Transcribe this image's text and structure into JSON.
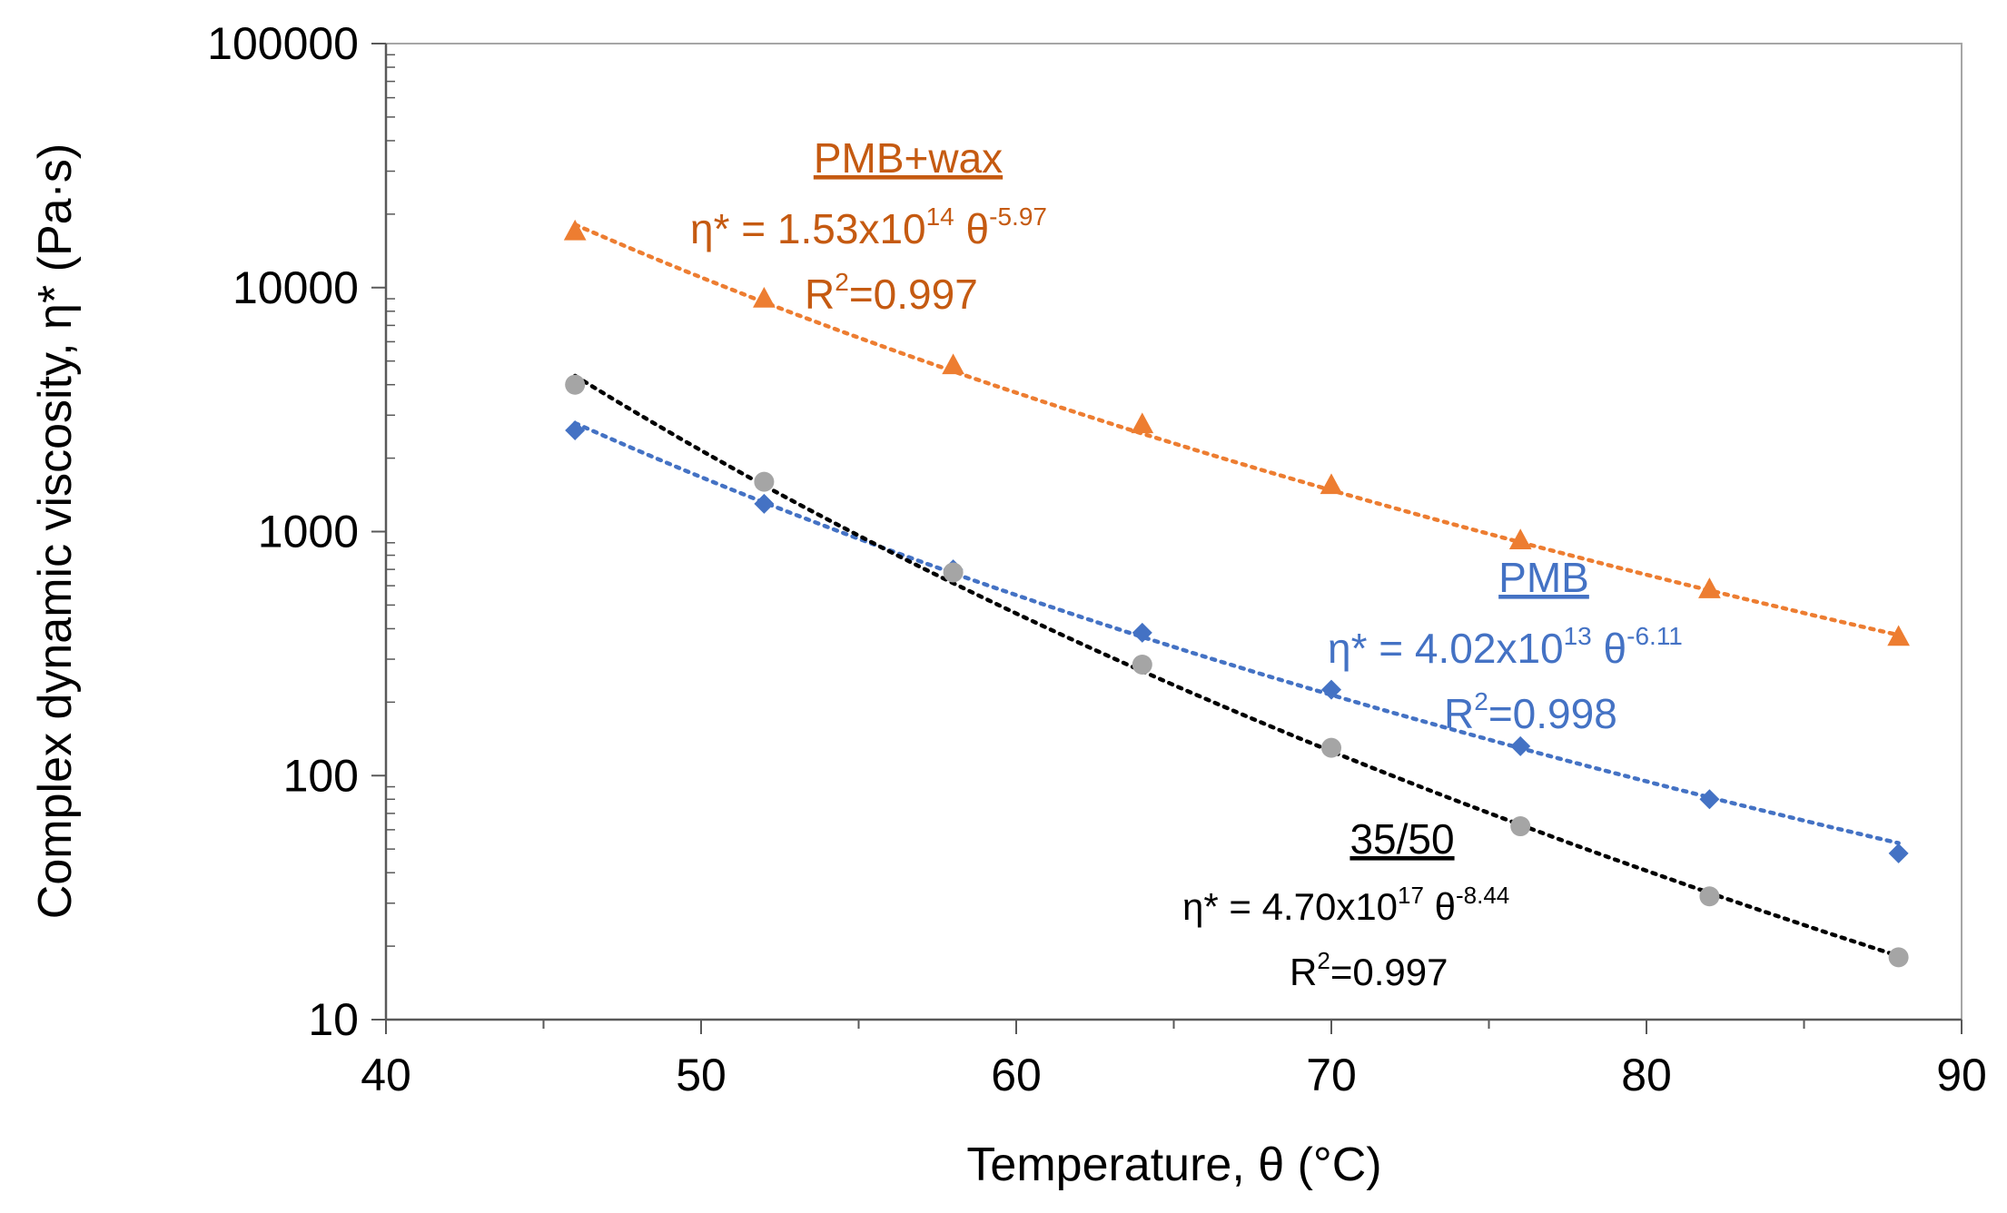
{
  "chart_data": {
    "type": "scatter",
    "title": "",
    "xlabel": "Temperature, θ (°C)",
    "ylabel": "Complex dynamic viscosity, η* (Pa·s)",
    "xlim": [
      40,
      90
    ],
    "ylim": [
      10,
      100000
    ],
    "yscale": "log",
    "x_ticks": [
      "40",
      "50",
      "60",
      "70",
      "80",
      "90"
    ],
    "y_ticks": [
      "10",
      "100",
      "1000",
      "10000",
      "100000"
    ],
    "x": [
      46,
      52,
      58,
      64,
      70,
      76,
      82,
      88
    ],
    "series": [
      {
        "name": "PMB+wax",
        "color": "#ED7D31",
        "marker": "triangle",
        "values": [
          17000,
          9000,
          4800,
          2750,
          1550,
          920,
          580,
          370
        ],
        "fit": {
          "a": 153000000000000.0,
          "b": -5.97
        },
        "label": {
          "name": "PMB+wax",
          "eq_prefix": "η* = 1.53x10",
          "eq_exp": "14",
          "eq_theta": " θ",
          "eq_theta_exp": "-5.97",
          "r2_prefix": "R",
          "r2_exp": "2",
          "r2_value": "=0.997"
        }
      },
      {
        "name": "PMB",
        "color": "#4472C4",
        "marker": "diamond",
        "values": [
          2600,
          1300,
          700,
          385,
          225,
          132,
          80,
          48
        ],
        "fit": {
          "a": 40200000000000.0,
          "b": -6.11
        },
        "label": {
          "name": "PMB",
          "eq_prefix": "η* = 4.02x10",
          "eq_exp": "13",
          "eq_theta": " θ",
          "eq_theta_exp": "-6.11",
          "r2_prefix": "R",
          "r2_exp": "2",
          "r2_value": "=0.998"
        }
      },
      {
        "name": "35/50",
        "color": "#000000",
        "marker_color": "#A5A5A5",
        "marker": "circle",
        "values": [
          4000,
          1600,
          680,
          285,
          130,
          62,
          32,
          18
        ],
        "fit": {
          "a": 4.7e+17,
          "b": -8.44
        },
        "label": {
          "name": "35/50",
          "eq_prefix": "η* = 4.70x10",
          "eq_exp": "17",
          "eq_theta": " θ",
          "eq_theta_exp": "-8.44",
          "r2_prefix": "R",
          "r2_exp": "2",
          "r2_value": "=0.997"
        }
      }
    ]
  }
}
